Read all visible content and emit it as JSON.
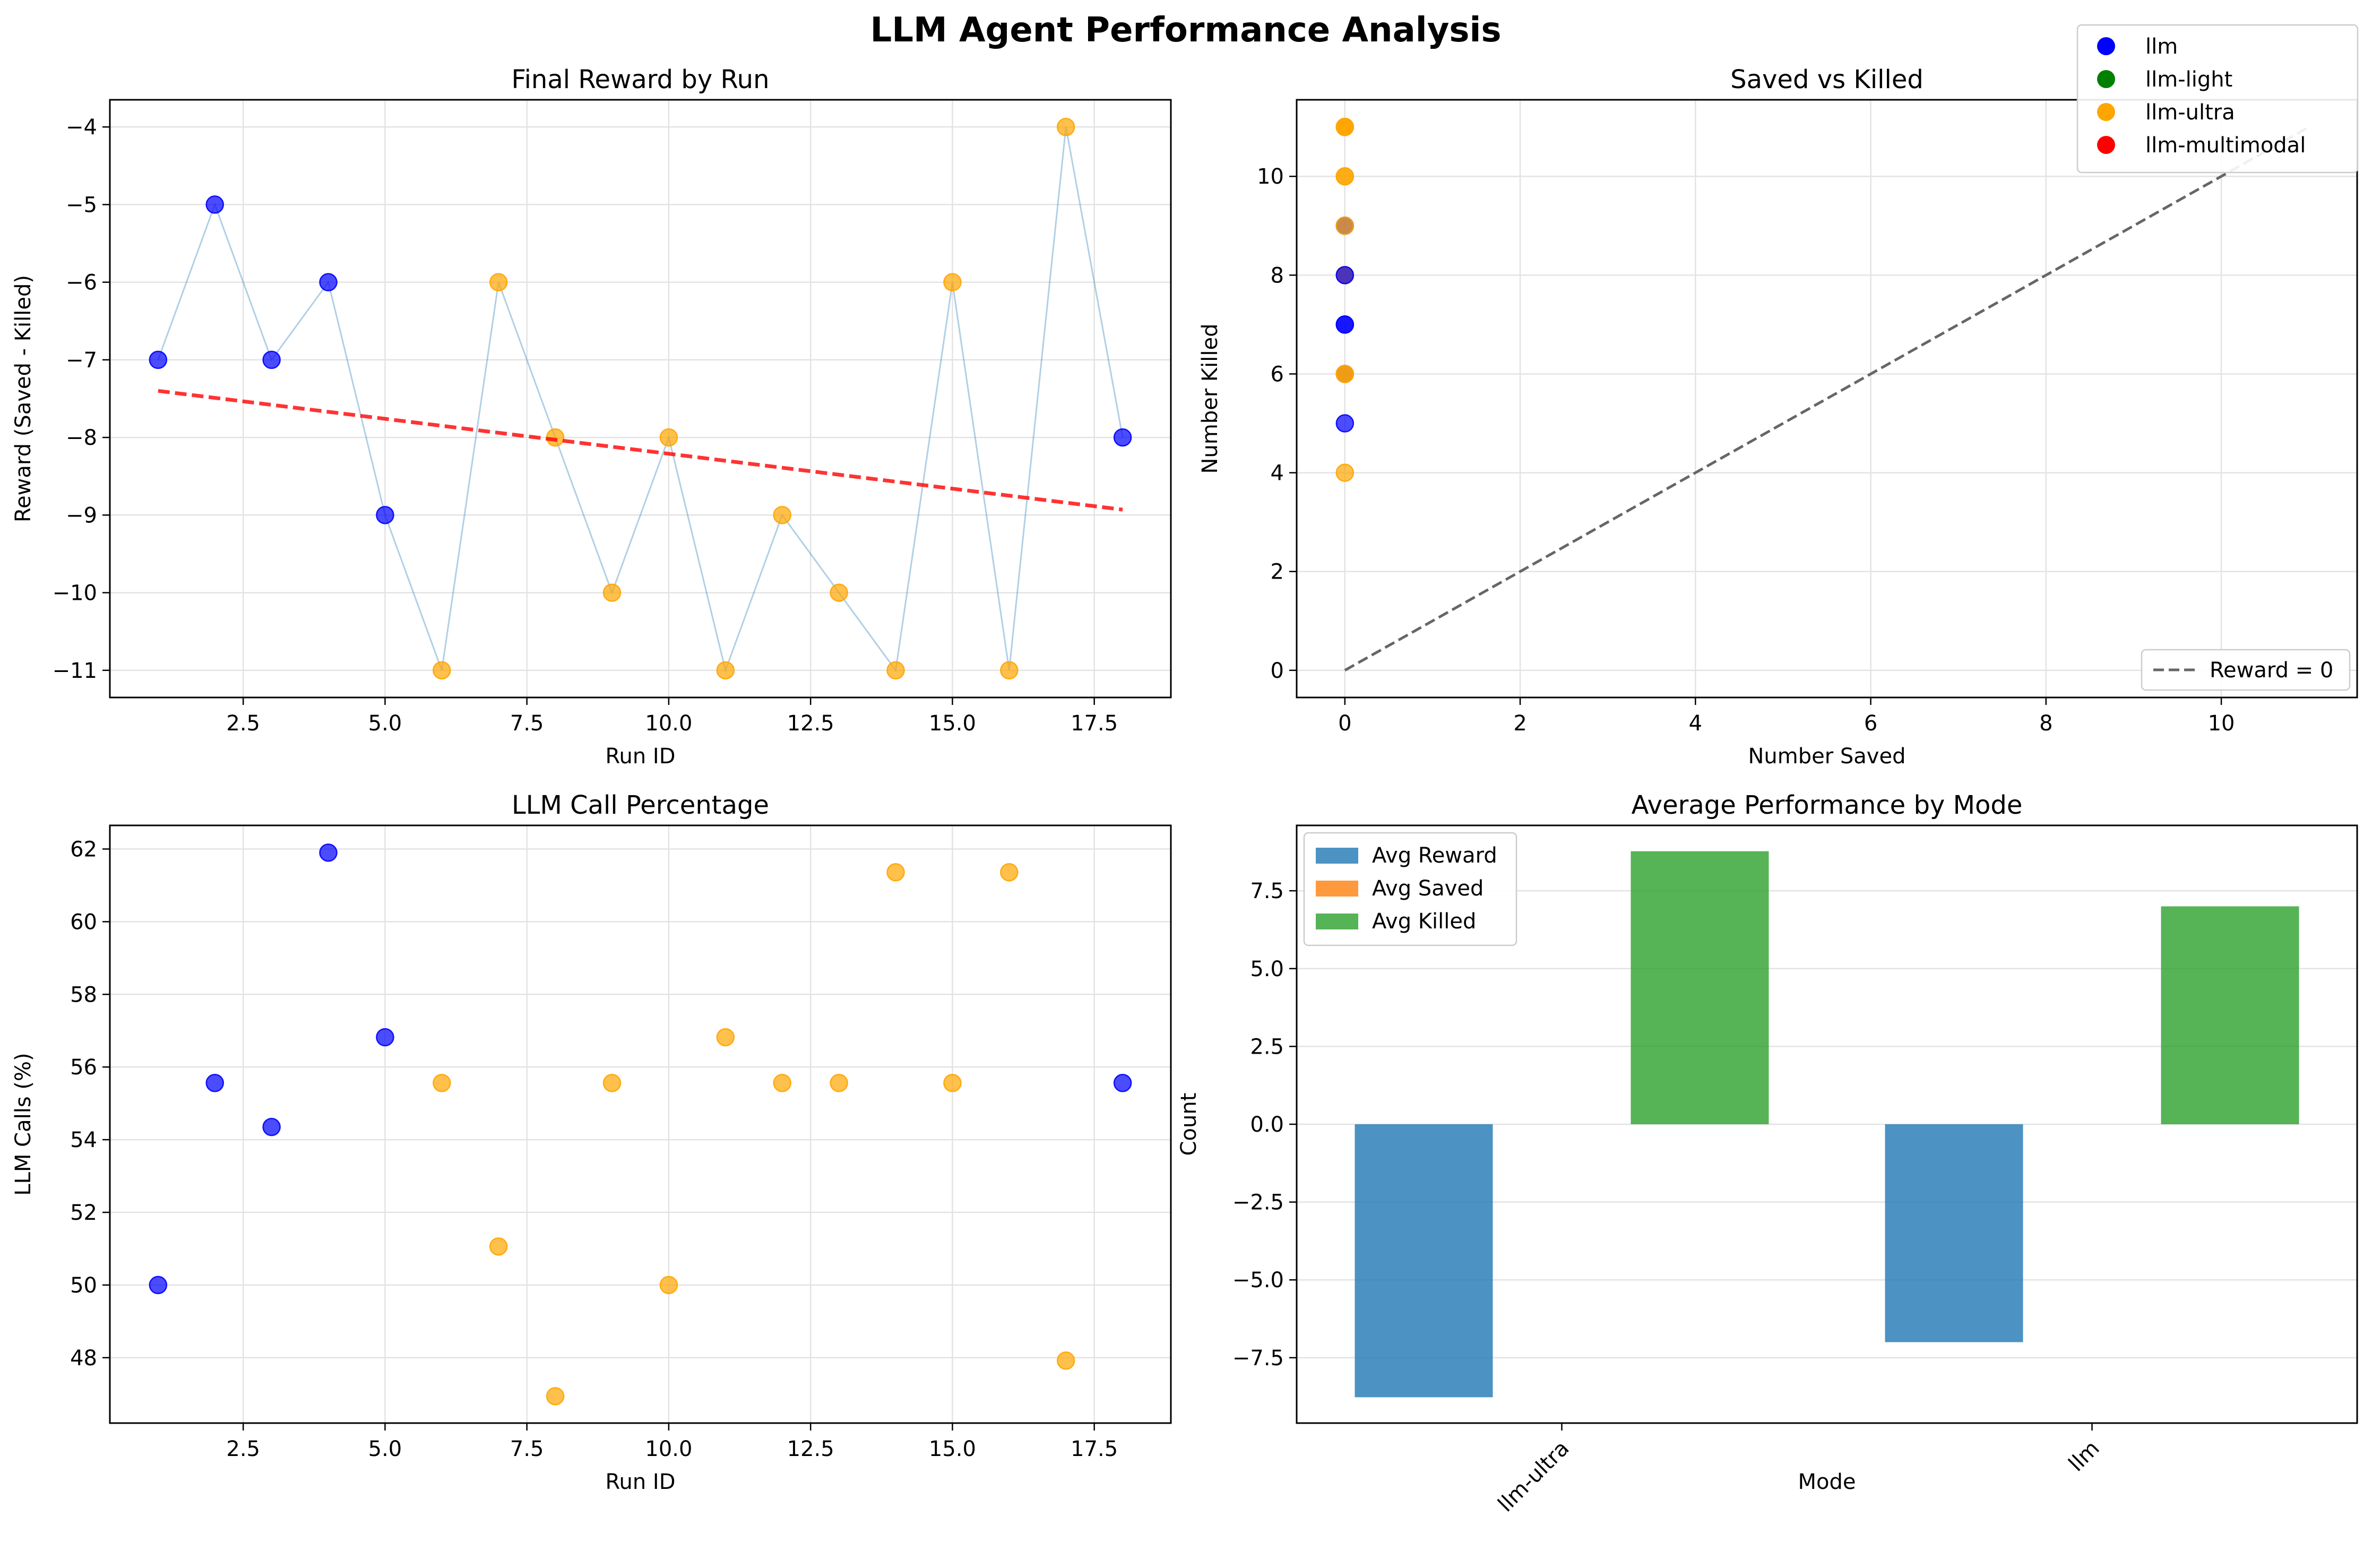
{
  "figure_title": "LLM Agent Performance Analysis",
  "legend": {
    "entries": [
      {
        "label": "llm",
        "color": "#0000ff"
      },
      {
        "label": "llm-light",
        "color": "#008000"
      },
      {
        "label": "llm-ultra",
        "color": "#ffa500"
      },
      {
        "label": "llm-multimodal",
        "color": "#ff0000"
      }
    ],
    "placement": "top-right"
  },
  "chart_data": [
    {
      "type": "scatter",
      "title": "Final Reward by Run",
      "xlabel": "Run ID",
      "ylabel": "Reward (Saved - Killed)",
      "xlim": [
        0.15,
        18.85
      ],
      "ylim": [
        -11.35,
        -3.65
      ],
      "xticks": [
        2.5,
        5.0,
        7.5,
        10.0,
        12.5,
        15.0,
        17.5
      ],
      "yticks": [
        -11,
        -10,
        -9,
        -8,
        -7,
        -6,
        -5,
        -4
      ],
      "grid": true,
      "connecting_line": true,
      "trend_line": {
        "x": [
          1,
          18
        ],
        "y": [
          -7.4,
          -8.93
        ],
        "color": "#ff0000",
        "style": "dashed"
      },
      "points": [
        {
          "x": 1,
          "y": -7,
          "mode": "llm"
        },
        {
          "x": 2,
          "y": -5,
          "mode": "llm"
        },
        {
          "x": 3,
          "y": -7,
          "mode": "llm"
        },
        {
          "x": 4,
          "y": -6,
          "mode": "llm"
        },
        {
          "x": 5,
          "y": -9,
          "mode": "llm"
        },
        {
          "x": 6,
          "y": -11,
          "mode": "llm-ultra"
        },
        {
          "x": 7,
          "y": -6,
          "mode": "llm-ultra"
        },
        {
          "x": 8,
          "y": -8,
          "mode": "llm-ultra"
        },
        {
          "x": 9,
          "y": -10,
          "mode": "llm-ultra"
        },
        {
          "x": 10,
          "y": -8,
          "mode": "llm-ultra"
        },
        {
          "x": 11,
          "y": -11,
          "mode": "llm-ultra"
        },
        {
          "x": 12,
          "y": -9,
          "mode": "llm-ultra"
        },
        {
          "x": 13,
          "y": -10,
          "mode": "llm-ultra"
        },
        {
          "x": 14,
          "y": -11,
          "mode": "llm-ultra"
        },
        {
          "x": 15,
          "y": -6,
          "mode": "llm-ultra"
        },
        {
          "x": 16,
          "y": -11,
          "mode": "llm-ultra"
        },
        {
          "x": 17,
          "y": -4,
          "mode": "llm-ultra"
        },
        {
          "x": 18,
          "y": -8,
          "mode": "llm"
        }
      ]
    },
    {
      "type": "scatter",
      "title": "Saved vs Killed",
      "xlabel": "Number Saved",
      "ylabel": "Number Killed",
      "xlim": [
        -0.55,
        11.55
      ],
      "ylim": [
        -0.55,
        11.55
      ],
      "xticks": [
        0,
        2,
        4,
        6,
        8,
        10
      ],
      "yticks": [
        0,
        2,
        4,
        6,
        8,
        10
      ],
      "grid": true,
      "reference_line": {
        "label": "Reward = 0",
        "x": [
          0,
          11
        ],
        "y": [
          0,
          11
        ],
        "color": "#666666",
        "style": "dashed"
      },
      "reference_legend_placement": "bottom-right",
      "points": [
        {
          "x": 0,
          "y": 7,
          "mode": "llm"
        },
        {
          "x": 0,
          "y": 5,
          "mode": "llm"
        },
        {
          "x": 0,
          "y": 7,
          "mode": "llm"
        },
        {
          "x": 0,
          "y": 6,
          "mode": "llm"
        },
        {
          "x": 0,
          "y": 9,
          "mode": "llm"
        },
        {
          "x": 0,
          "y": 11,
          "mode": "llm-ultra"
        },
        {
          "x": 0,
          "y": 6,
          "mode": "llm-ultra"
        },
        {
          "x": 0,
          "y": 8,
          "mode": "llm-ultra"
        },
        {
          "x": 0,
          "y": 10,
          "mode": "llm-ultra"
        },
        {
          "x": 0,
          "y": 8,
          "mode": "llm-ultra"
        },
        {
          "x": 0,
          "y": 11,
          "mode": "llm-ultra"
        },
        {
          "x": 0,
          "y": 9,
          "mode": "llm-ultra"
        },
        {
          "x": 0,
          "y": 10,
          "mode": "llm-ultra"
        },
        {
          "x": 0,
          "y": 11,
          "mode": "llm-ultra"
        },
        {
          "x": 0,
          "y": 6,
          "mode": "llm-ultra"
        },
        {
          "x": 0,
          "y": 11,
          "mode": "llm-ultra"
        },
        {
          "x": 0,
          "y": 4,
          "mode": "llm-ultra"
        },
        {
          "x": 0,
          "y": 8,
          "mode": "llm"
        }
      ]
    },
    {
      "type": "scatter",
      "title": "LLM Call Percentage",
      "xlabel": "Run ID",
      "ylabel": "LLM Calls (%)",
      "xlim": [
        0.15,
        18.85
      ],
      "ylim": [
        46.2,
        62.65
      ],
      "xticks": [
        2.5,
        5.0,
        7.5,
        10.0,
        12.5,
        15.0,
        17.5
      ],
      "yticks": [
        48,
        50,
        52,
        54,
        56,
        58,
        60,
        62
      ],
      "grid": true,
      "points": [
        {
          "x": 1,
          "y": 50.0,
          "mode": "llm"
        },
        {
          "x": 2,
          "y": 55.56,
          "mode": "llm"
        },
        {
          "x": 3,
          "y": 54.35,
          "mode": "llm"
        },
        {
          "x": 4,
          "y": 61.9,
          "mode": "llm"
        },
        {
          "x": 5,
          "y": 56.82,
          "mode": "llm"
        },
        {
          "x": 6,
          "y": 55.56,
          "mode": "llm-ultra"
        },
        {
          "x": 7,
          "y": 51.06,
          "mode": "llm-ultra"
        },
        {
          "x": 8,
          "y": 46.94,
          "mode": "llm-ultra"
        },
        {
          "x": 9,
          "y": 55.56,
          "mode": "llm-ultra"
        },
        {
          "x": 10,
          "y": 50.0,
          "mode": "llm-ultra"
        },
        {
          "x": 11,
          "y": 56.82,
          "mode": "llm-ultra"
        },
        {
          "x": 12,
          "y": 55.56,
          "mode": "llm-ultra"
        },
        {
          "x": 13,
          "y": 55.56,
          "mode": "llm-ultra"
        },
        {
          "x": 14,
          "y": 61.36,
          "mode": "llm-ultra"
        },
        {
          "x": 15,
          "y": 55.56,
          "mode": "llm-ultra"
        },
        {
          "x": 16,
          "y": 61.36,
          "mode": "llm-ultra"
        },
        {
          "x": 17,
          "y": 47.92,
          "mode": "llm-ultra"
        },
        {
          "x": 18,
          "y": 55.56,
          "mode": "llm"
        }
      ]
    },
    {
      "type": "bar",
      "title": "Average Performance by Mode",
      "xlabel": "Mode",
      "ylabel": "Count",
      "categories": [
        "llm-ultra",
        "llm"
      ],
      "ylim": [
        -9.6,
        9.6
      ],
      "yticks": [
        -7.5,
        -5.0,
        -2.5,
        0.0,
        2.5,
        5.0,
        7.5
      ],
      "grid": true,
      "legend_placement": "top-left",
      "series": [
        {
          "name": "Avg Reward",
          "values": [
            -8.77,
            -7.0
          ],
          "color": "#1f77b4"
        },
        {
          "name": "Avg Saved",
          "values": [
            0,
            0
          ],
          "color": "#ff7f0e"
        },
        {
          "name": "Avg Killed",
          "values": [
            8.77,
            7.0
          ],
          "color": "#2ca02c"
        }
      ]
    }
  ]
}
